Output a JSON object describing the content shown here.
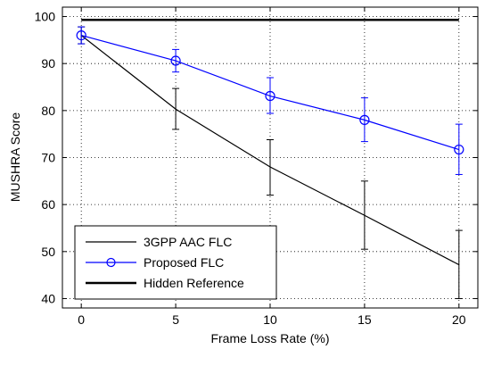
{
  "chart_data": {
    "type": "line",
    "title": "",
    "xlabel": "Frame Loss Rate (%)",
    "ylabel": "MUSHRA Score",
    "xlim": [
      -1,
      21
    ],
    "ylim": [
      38,
      102
    ],
    "xticks": [
      0,
      5,
      10,
      15,
      20
    ],
    "yticks": [
      40,
      50,
      60,
      70,
      80,
      90,
      100
    ],
    "grid": true,
    "legend_position": "bottom-left",
    "series": [
      {
        "name": "3GPP AAC FLC",
        "color": "#000000",
        "marker": "none",
        "x": [
          0,
          5,
          10,
          15,
          20
        ],
        "y": [
          96,
          80.3,
          68,
          57.7,
          47.2
        ],
        "err_low": [
          94.2,
          76,
          62,
          50.5,
          40
        ],
        "err_high": [
          97.8,
          84.7,
          73.8,
          65,
          54.5
        ]
      },
      {
        "name": "Proposed FLC",
        "color": "#0000ff",
        "marker": "circle",
        "x": [
          0,
          5,
          10,
          15,
          20
        ],
        "y": [
          96,
          90.6,
          83.1,
          78,
          71.7
        ],
        "err_low": [
          94.2,
          88.2,
          79.4,
          73.4,
          66.4
        ],
        "err_high": [
          97.8,
          93,
          87,
          82.7,
          77.1
        ]
      },
      {
        "name": "Hidden Reference",
        "color": "#000000",
        "marker": "none",
        "x": [
          0,
          20
        ],
        "y": [
          99.3,
          99.3
        ]
      }
    ]
  }
}
